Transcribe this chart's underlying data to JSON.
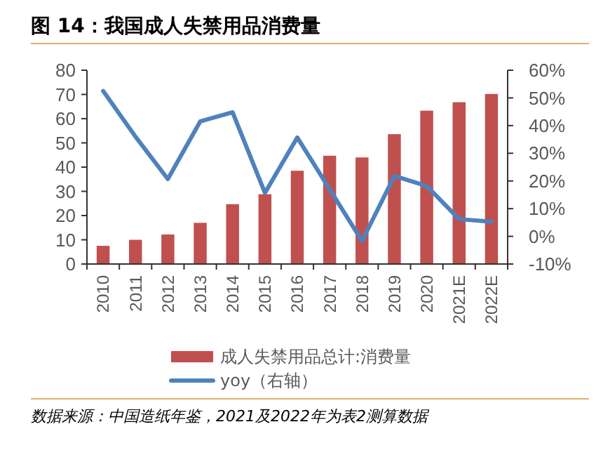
{
  "chart_data": {
    "type": "bar",
    "title": "图 14：我国成人失禁用品消费量",
    "categories": [
      "2010",
      "2011",
      "2012",
      "2013",
      "2014",
      "2015",
      "2016",
      "2017",
      "2018",
      "2019",
      "2020",
      "2021E",
      "2022E"
    ],
    "series": [
      {
        "name": "成人失禁用品总计:消费量",
        "color": "#c0504d",
        "values": [
          7.5,
          10,
          12.2,
          17,
          24.7,
          28.8,
          38.5,
          44.7,
          44,
          53.6,
          63.3,
          66.8,
          70.2
        ]
      },
      {
        "name": "yoy（右轴）",
        "type": "line",
        "axis": "y2",
        "color": "#4f81bd",
        "values": [
          52.5,
          36,
          20.7,
          41.5,
          44.8,
          15.7,
          35.7,
          17,
          -1.7,
          21.8,
          18.2,
          6.2,
          5.3
        ]
      }
    ],
    "ylim": [
      0,
      80
    ],
    "yticks": [
      0,
      10,
      20,
      30,
      40,
      50,
      60,
      70,
      80
    ],
    "y2lim": [
      -10,
      60
    ],
    "y2ticks": [
      {
        "value": -10,
        "label": "-10%"
      },
      {
        "value": 0,
        "label": "0%"
      },
      {
        "value": 10,
        "label": "10%"
      },
      {
        "value": 20,
        "label": "20%"
      },
      {
        "value": 30,
        "label": "30%"
      },
      {
        "value": 40,
        "label": "40%"
      },
      {
        "value": 50,
        "label": "50%"
      },
      {
        "value": 60,
        "label": "60%"
      }
    ],
    "legend": "bottom",
    "grid": false,
    "marker": "none",
    "line_style": "solid",
    "annotations": [
      "数据来源：中国造纸年鉴，2021及2022年为表2测算数据"
    ]
  }
}
